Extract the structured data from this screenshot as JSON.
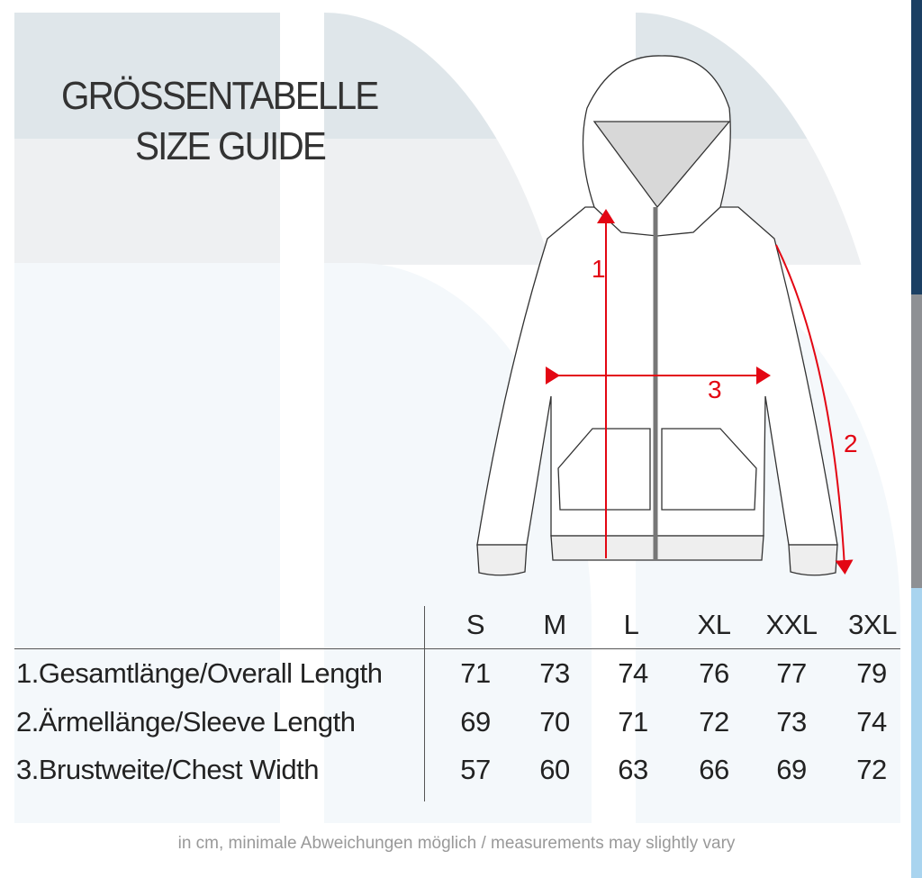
{
  "title_de": "GRÖSSENTABELLE",
  "title_en": "SIZE GUIDE",
  "diagram_labels": [
    "1",
    "2",
    "3"
  ],
  "colors": {
    "arrow": "#e30613",
    "bar_top": "#1b3f63",
    "bar_mid": "#8e9094",
    "bar_bottom": "#a9d4ef"
  },
  "table": {
    "sizes": [
      "S",
      "M",
      "L",
      "XL",
      "XXL",
      "3XL"
    ],
    "rows": [
      {
        "label": "1.Gesamtlänge/Overall Length",
        "values": [
          "71",
          "73",
          "74",
          "76",
          "77",
          "79"
        ]
      },
      {
        "label": "2.Ärmellänge/Sleeve Length",
        "values": [
          "69",
          "70",
          "71",
          "72",
          "73",
          "74"
        ]
      },
      {
        "label": "3.Brustweite/Chest Width",
        "values": [
          "57",
          "60",
          "63",
          "66",
          "69",
          "72"
        ]
      }
    ]
  },
  "footnote": "in cm, minimale Abweichungen möglich / measurements may slightly vary"
}
